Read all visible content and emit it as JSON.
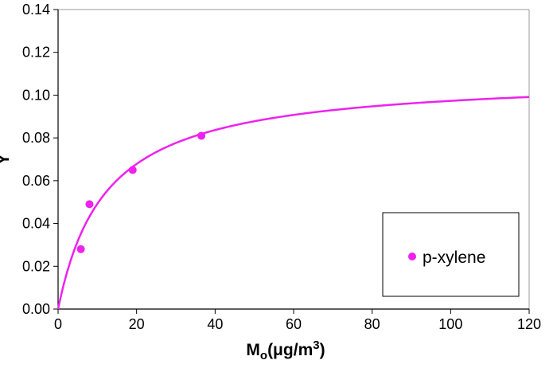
{
  "chart_data": {
    "type": "scatter",
    "xlabel": {
      "main": "M",
      "subscript": "o",
      "units_open": "(μg/m",
      "superscript": "3",
      "units_close": ")"
    },
    "ylabel": "Y",
    "xlim": [
      0,
      120
    ],
    "ylim": [
      0,
      0.14
    ],
    "x_ticks": [
      "0",
      "20",
      "40",
      "60",
      "80",
      "100",
      "120"
    ],
    "y_ticks": [
      "0.00",
      "0.02",
      "0.04",
      "0.06",
      "0.08",
      "0.10",
      "0.12",
      "0.14"
    ],
    "grid": false,
    "legend_position": "bottom-right",
    "series": [
      {
        "name": "p-xylene",
        "color": "#ee22ee",
        "points": [
          {
            "x": 5.8,
            "y": 0.028
          },
          {
            "x": 8.0,
            "y": 0.049
          },
          {
            "x": 19.0,
            "y": 0.065
          },
          {
            "x": 36.5,
            "y": 0.081
          }
        ]
      }
    ],
    "fit_curve": {
      "color": "#ee22ee",
      "form": "Y = a*M/(K+M)",
      "a": 0.1092,
      "K": 12.2
    }
  }
}
